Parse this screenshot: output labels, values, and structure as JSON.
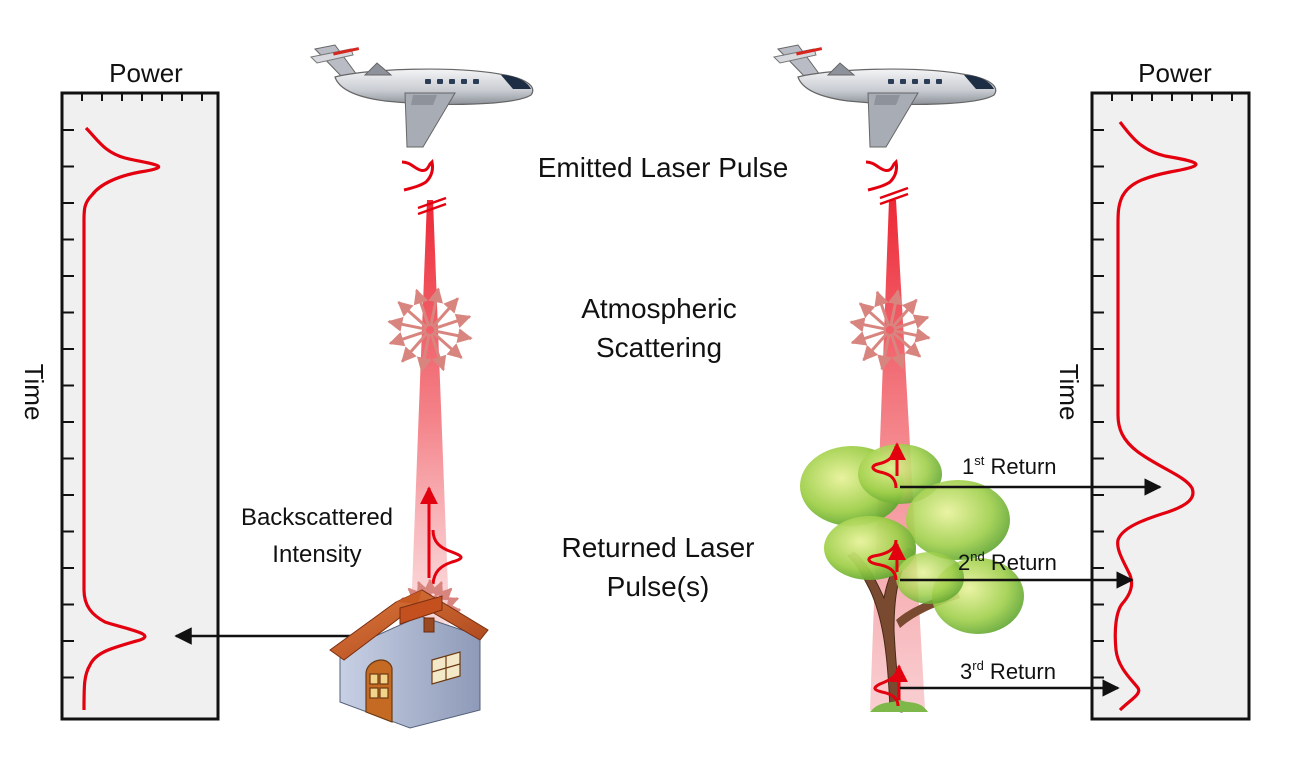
{
  "labels": {
    "power_left": "Power",
    "power_right": "Power",
    "time_left": "Time",
    "time_right": "Time",
    "emitted": "Emitted Laser Pulse",
    "atmos_line1": "Atmospheric",
    "atmos_line2": "Scattering",
    "backscatter_line1": "Backscattered",
    "backscatter_line2": "Intensity",
    "returned_line1": "Returned Laser",
    "returned_line2": "Pulse(s)",
    "return1": {
      "num": "1",
      "sup": "st",
      "text": " Return"
    },
    "return2": {
      "num": "2",
      "sup": "nd",
      "text": " Return"
    },
    "return3": {
      "num": "3",
      "sup": "rd",
      "text": " Return"
    }
  },
  "colors": {
    "pulse": "#e3000f",
    "beam": "#f04a55",
    "scatter": "#d9857f",
    "panel_fill": "#f0f0f0",
    "panel_stroke": "#111111",
    "arrow": "#111111"
  },
  "icons": [
    "airplane-icon",
    "house-icon",
    "tree-icon"
  ]
}
